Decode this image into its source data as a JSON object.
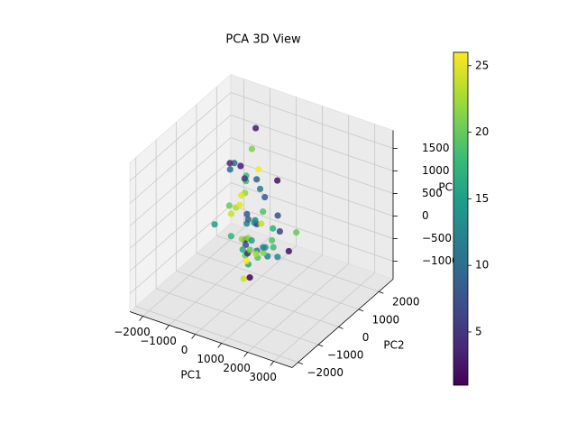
{
  "chart_data": {
    "type": "scatter3d",
    "title": "PCA 3D View",
    "xlabel": "PC1",
    "ylabel": "PC2",
    "zlabel": "PC3",
    "xlim": [
      -2500,
      3700
    ],
    "ylim": [
      -2300,
      2700
    ],
    "zlim": [
      -1400,
      1900
    ],
    "xticks": [
      {
        "value": -2000,
        "label": "−2000"
      },
      {
        "value": -1000,
        "label": "−1000"
      },
      0,
      1000,
      2000,
      3000
    ],
    "yticks": [
      {
        "value": -2000,
        "label": "−2000"
      },
      {
        "value": -1000,
        "label": "−1000"
      },
      0,
      1000,
      2000
    ],
    "zticks": [
      {
        "value": -1000,
        "label": "−1000"
      },
      {
        "value": -500,
        "label": "−500"
      },
      0,
      500,
      1000,
      1500
    ],
    "colormap": "viridis",
    "clim": [
      1,
      26
    ],
    "cticks": [
      5,
      10,
      15,
      20,
      25
    ],
    "grid": true,
    "x": [
      -1200,
      -800,
      -500,
      -300,
      0,
      200,
      400,
      600,
      800,
      1000,
      1200,
      1500,
      1800,
      -1000,
      -600,
      -200,
      100,
      300,
      500,
      700,
      900,
      1100,
      1300,
      -1400,
      -900,
      -400,
      0,
      250,
      550,
      850,
      1150,
      1450,
      -700,
      -100,
      350,
      650,
      950,
      1250,
      -1100,
      -300,
      150,
      450,
      750,
      1050,
      1600,
      -500,
      50,
      400,
      900,
      1300,
      -850,
      -250,
      300,
      700,
      1000,
      -1300,
      -650,
      200,
      600,
      1700
    ],
    "y": [
      1500,
      1200,
      900,
      600,
      300,
      0,
      -300,
      -600,
      -900,
      -1200,
      -800,
      -400,
      0,
      1800,
      1400,
      1000,
      700,
      400,
      100,
      -200,
      -500,
      -1100,
      -1400,
      1200,
      800,
      500,
      200,
      -100,
      -400,
      -700,
      -1000,
      -600,
      1600,
      1100,
      600,
      300,
      -150,
      -450,
      900,
      1300,
      -50,
      -350,
      -650,
      -950,
      -300,
      700,
      1700,
      -800,
      400,
      100,
      1000,
      -250,
      1500,
      -900,
      200,
      1100,
      -500,
      800,
      -1300,
      500
    ],
    "z": [
      600,
      200,
      -300,
      800,
      -600,
      400,
      0,
      -200,
      300,
      -400,
      100,
      500,
      -100,
      900,
      -500,
      700,
      1100,
      -700,
      200,
      -300,
      600,
      -100,
      300,
      -200,
      1000,
      500,
      -400,
      1300,
      100,
      -600,
      400,
      -50,
      1500,
      -300,
      250,
      750,
      -250,
      50,
      -700,
      350,
      1200,
      -450,
      650,
      150,
      -150,
      -800,
      450,
      900,
      -350,
      550,
      0,
      1400,
      -550,
      300,
      -100,
      800,
      200,
      -650,
      1000,
      100
    ],
    "c": [
      3,
      22,
      12,
      18,
      25,
      8,
      15,
      20,
      5,
      24,
      11,
      17,
      2,
      21,
      14,
      9,
      26,
      19,
      6,
      23,
      13,
      16,
      4,
      20,
      10,
      25,
      7,
      18,
      22,
      1,
      15,
      12,
      3,
      24,
      19,
      8,
      21,
      14,
      17,
      11,
      5,
      26,
      9,
      20,
      13,
      16,
      2,
      23,
      18,
      7,
      25,
      10,
      6,
      22,
      19,
      4,
      15,
      12,
      24,
      20
    ]
  }
}
